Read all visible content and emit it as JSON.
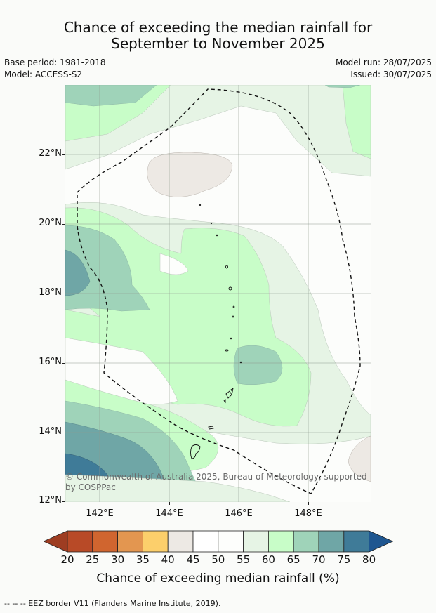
{
  "title_line1": "Chance of exceeding the median rainfall for",
  "title_line2": "September to November 2025",
  "base_period": "Base period: 1981-2018",
  "model": "Model: ACCESS-S2",
  "model_run": "Model run: 28/07/2025",
  "issued": "Issued: 30/07/2025",
  "y_labels": [
    "22°N",
    "20°N",
    "18°N",
    "16°N",
    "14°N",
    "12°N"
  ],
  "x_labels": [
    "142°E",
    "144°E",
    "146°E",
    "148°E"
  ],
  "copyright": "© Commonwealth of Australia 2025, Bureau of Meteorology, supported by COSPPac",
  "colorbar": {
    "ticks": [
      "20",
      "25",
      "30",
      "35",
      "40",
      "45",
      "50",
      "55",
      "60",
      "65",
      "70",
      "75",
      "80"
    ],
    "colors": [
      "#9e3d22",
      "#b84a27",
      "#d0652f",
      "#e39650",
      "#fccf6b",
      "#ede9e4",
      "#ffffff",
      "#fdfefc",
      "#e6f4e5",
      "#c8fdc8",
      "#9fd3b9",
      "#6fa6a6",
      "#3f7b98",
      "#1e5690"
    ],
    "title": "Chance of exceeding median rainfall (%)"
  },
  "legend_footer": "--  --  -- EEZ border V11 (Flanders Marine Institute, 2019)."
}
